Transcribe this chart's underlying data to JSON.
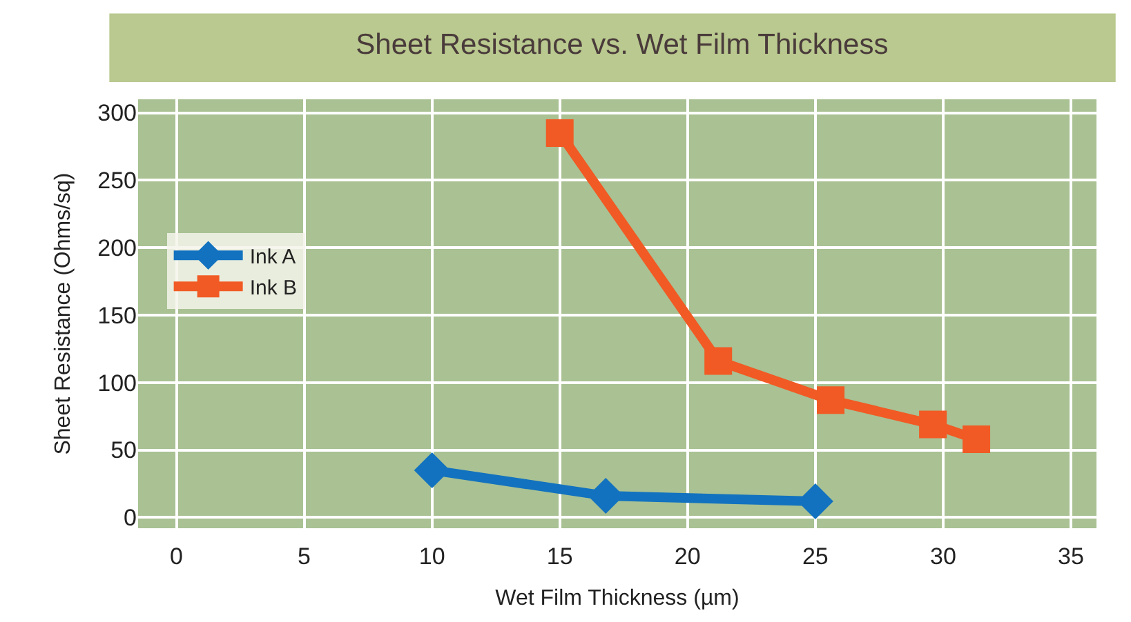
{
  "chart_data": {
    "type": "line",
    "title": "Sheet Resistance vs. Wet Film Thickness",
    "xlabel": "Wet Film Thickness (µm)",
    "ylabel": "Sheet Resistance (Ohms/sq)",
    "series": [
      {
        "name": "Ink A",
        "color": "#1272bf",
        "marker": "diamond",
        "x": [
          10,
          16.8,
          25
        ],
        "values": [
          35,
          16,
          12
        ]
      },
      {
        "name": "Ink B",
        "color": "#f15a24",
        "marker": "square",
        "x": [
          15,
          21.2,
          25.6,
          29.6,
          31.3
        ],
        "values": [
          285,
          116,
          87,
          69,
          58
        ]
      }
    ],
    "xlim": [
      -1.5,
      36
    ],
    "xticks": [
      0,
      5,
      10,
      15,
      20,
      25,
      30,
      35
    ],
    "ylim": [
      -8,
      310
    ],
    "yticks": [
      0,
      50,
      100,
      150,
      200,
      250,
      300
    ],
    "grid": true,
    "legend": "left",
    "line_style": "solid"
  }
}
